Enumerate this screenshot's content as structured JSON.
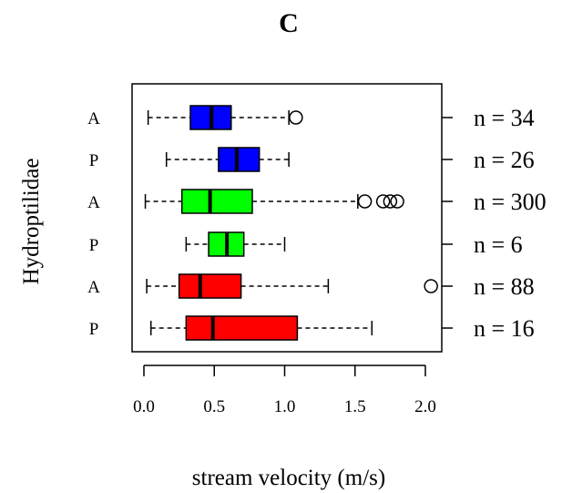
{
  "chart_data": {
    "type": "boxplot",
    "orientation": "horizontal",
    "title": "C",
    "xlabel": "stream velocity (m/s)",
    "ylabel": "Hydroptilidae",
    "xlim": [
      -0.05,
      2.15
    ],
    "xticks": [
      0.0,
      0.5,
      1.0,
      1.5,
      2.0
    ],
    "xtick_labels": [
      "0.0",
      "0.5",
      "1.0",
      "1.5",
      "2.0"
    ],
    "grid": false,
    "boxes": [
      {
        "label": "A",
        "n_label": "n = 34",
        "color": "#0000ff",
        "whisker_low": 0.03,
        "q1": 0.33,
        "median": 0.48,
        "q3": 0.62,
        "whisker_high": 1.03,
        "outliers": [
          1.08
        ]
      },
      {
        "label": "P",
        "n_label": "n = 26",
        "color": "#0000ff",
        "whisker_low": 0.16,
        "q1": 0.53,
        "median": 0.66,
        "q3": 0.82,
        "whisker_high": 1.03,
        "outliers": []
      },
      {
        "label": "A",
        "n_label": "n = 300",
        "color": "#00ff00",
        "whisker_low": 0.01,
        "q1": 0.27,
        "median": 0.47,
        "q3": 0.77,
        "whisker_high": 1.52,
        "outliers": [
          1.57,
          1.7,
          1.75,
          1.8
        ]
      },
      {
        "label": "P",
        "n_label": "n = 6",
        "color": "#00ff00",
        "whisker_low": 0.3,
        "q1": 0.46,
        "median": 0.59,
        "q3": 0.71,
        "whisker_high": 1.0,
        "outliers": []
      },
      {
        "label": "A",
        "n_label": "n = 88",
        "color": "#ff0000",
        "whisker_low": 0.02,
        "q1": 0.25,
        "median": 0.4,
        "q3": 0.69,
        "whisker_high": 1.31,
        "outliers": [
          2.04
        ]
      },
      {
        "label": "P",
        "n_label": "n = 16",
        "color": "#ff0000",
        "whisker_low": 0.05,
        "q1": 0.3,
        "median": 0.49,
        "q3": 1.09,
        "whisker_high": 1.62,
        "outliers": []
      }
    ]
  }
}
